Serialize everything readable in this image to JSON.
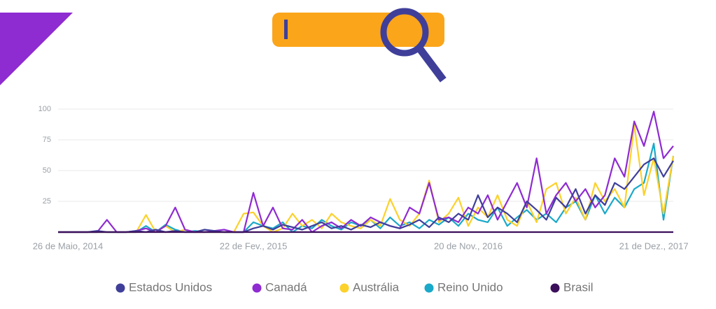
{
  "chart_data": {
    "type": "line",
    "categories": [
      null,
      "26 de Maio, 2014",
      null,
      null,
      null,
      null,
      null,
      null,
      null,
      null,
      null,
      null,
      null,
      null,
      null,
      null,
      null,
      null,
      null,
      null,
      "22 de Fev., 2015",
      null,
      null,
      null,
      null,
      null,
      null,
      null,
      null,
      null,
      null,
      null,
      null,
      null,
      null,
      null,
      null,
      null,
      null,
      null,
      null,
      null,
      "20 de Nov., 2016",
      null,
      null,
      null,
      null,
      null,
      null,
      null,
      null,
      null,
      null,
      null,
      null,
      null,
      null,
      null,
      null,
      null,
      null,
      "21 de Dez., 2017",
      null,
      null
    ],
    "series": [
      {
        "name": "Estados Unidos",
        "color": "#3f3f9a",
        "values": [
          0,
          0,
          0,
          0,
          1,
          0,
          0,
          0,
          1,
          0,
          2,
          0,
          1,
          0,
          0,
          2,
          1,
          0,
          0,
          0,
          3,
          5,
          2,
          6,
          4,
          2,
          5,
          8,
          3,
          5,
          2,
          6,
          4,
          8,
          5,
          3,
          6,
          10,
          4,
          12,
          8,
          15,
          10,
          30,
          12,
          20,
          15,
          8,
          25,
          18,
          10,
          28,
          20,
          35,
          15,
          30,
          22,
          40,
          35,
          45,
          55,
          60,
          45,
          58
        ]
      },
      {
        "name": "Canadá",
        "color": "#8e2bd1",
        "values": [
          0,
          0,
          0,
          0,
          0,
          10,
          0,
          0,
          1,
          3,
          0,
          5,
          20,
          2,
          0,
          0,
          1,
          2,
          0,
          0,
          32,
          5,
          20,
          3,
          2,
          10,
          0,
          5,
          8,
          3,
          10,
          5,
          12,
          8,
          5,
          3,
          20,
          15,
          40,
          10,
          12,
          8,
          20,
          15,
          30,
          10,
          25,
          40,
          20,
          60,
          15,
          30,
          40,
          25,
          35,
          20,
          30,
          60,
          45,
          90,
          70,
          98,
          60,
          70
        ]
      },
      {
        "name": "Austrália",
        "color": "#fcd12a",
        "values": [
          0,
          0,
          0,
          0,
          0,
          0,
          0,
          0,
          0,
          14,
          0,
          5,
          0,
          2,
          0,
          0,
          0,
          0,
          0,
          15,
          16,
          5,
          0,
          3,
          15,
          5,
          10,
          3,
          15,
          8,
          5,
          3,
          10,
          5,
          27,
          10,
          5,
          15,
          42,
          8,
          15,
          28,
          5,
          20,
          12,
          30,
          10,
          5,
          25,
          8,
          35,
          40,
          15,
          28,
          10,
          40,
          25,
          35,
          20,
          87,
          30,
          60,
          15,
          62
        ]
      },
      {
        "name": "Reino Unido",
        "color": "#1aa9c9",
        "values": [
          0,
          0,
          0,
          0,
          0,
          0,
          0,
          0,
          0,
          5,
          0,
          6,
          2,
          0,
          1,
          0,
          0,
          0,
          0,
          0,
          8,
          5,
          3,
          8,
          0,
          5,
          3,
          10,
          5,
          2,
          8,
          5,
          10,
          3,
          12,
          5,
          8,
          3,
          10,
          6,
          12,
          5,
          15,
          10,
          8,
          20,
          5,
          12,
          18,
          10,
          15,
          8,
          20,
          25,
          10,
          30,
          15,
          28,
          20,
          35,
          40,
          72,
          10,
          62
        ]
      },
      {
        "name": "Brasil",
        "color": "#3b0f5a",
        "values": [
          0,
          0,
          0,
          0,
          0,
          0,
          0,
          0,
          0,
          0,
          0,
          0,
          0,
          0,
          0,
          0,
          0,
          0,
          0,
          0,
          0,
          0,
          0,
          0,
          0,
          0,
          0,
          0,
          0,
          0,
          0,
          0,
          0,
          0,
          0,
          0,
          0,
          0,
          0,
          0,
          0,
          0,
          0,
          0,
          0,
          0,
          0,
          0,
          0,
          0,
          0,
          0,
          0,
          0,
          0,
          0,
          0,
          0,
          0,
          0,
          0,
          0,
          0,
          0
        ]
      }
    ],
    "ylim": [
      0,
      100
    ],
    "yticks": [
      25,
      50,
      75,
      100
    ],
    "grid": true
  }
}
